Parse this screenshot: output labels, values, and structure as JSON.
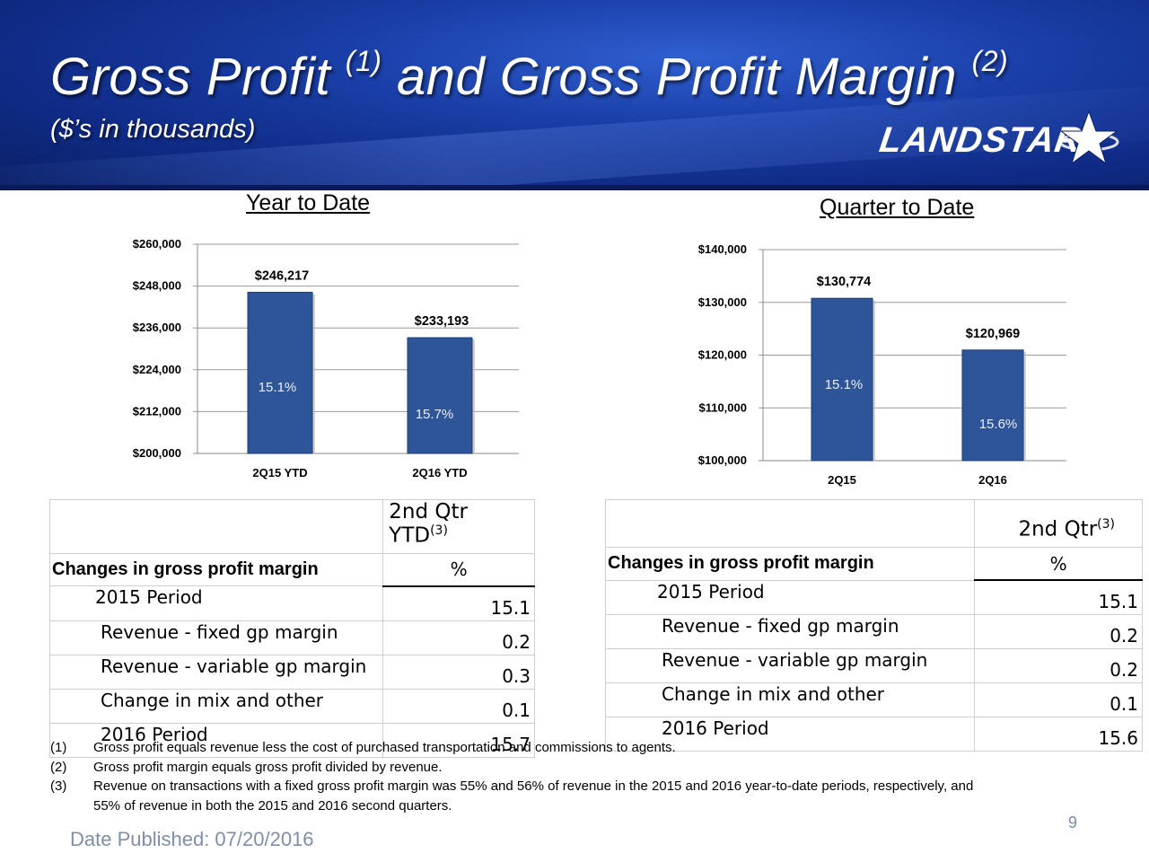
{
  "header": {
    "title_part1": "Gross Profit ",
    "title_sup1": "(1)",
    "title_part2": " and Gross Profit Margin ",
    "title_sup2": "(2)",
    "subtitle": "($’s in thousands)",
    "logo_text": "LANDSTAR"
  },
  "colors": {
    "bar": "#2e5597",
    "bar_edge": "#1e3c70",
    "header_bg": "#1a3fa8",
    "margin_label": "#e8eefc"
  },
  "chart_data": [
    {
      "type": "bar",
      "title": "Year to Date",
      "categories": [
        "2Q15 YTD",
        "2Q16 YTD"
      ],
      "values": [
        246217,
        233193
      ],
      "value_labels": [
        "$246,217",
        "$233,193"
      ],
      "margin_labels": [
        "15.1%",
        "15.7%"
      ],
      "ylim": [
        200000,
        260000
      ],
      "yticks": [
        200000,
        212000,
        224000,
        236000,
        248000,
        260000
      ],
      "ytick_labels": [
        "$200,000",
        "$212,000",
        "$224,000",
        "$236,000",
        "$248,000",
        "$260,000"
      ],
      "grid": true
    },
    {
      "type": "bar",
      "title": "Quarter to Date",
      "categories": [
        "2Q15",
        "2Q16"
      ],
      "values": [
        130774,
        120969
      ],
      "value_labels": [
        "$130,774",
        "$120,969"
      ],
      "margin_labels": [
        "15.1%",
        "15.6%"
      ],
      "ylim": [
        100000,
        140000
      ],
      "yticks": [
        100000,
        110000,
        120000,
        130000,
        140000
      ],
      "ytick_labels": [
        "$100,000",
        "$110,000",
        "$120,000",
        "$130,000",
        "$140,000"
      ],
      "grid": true
    }
  ],
  "ytd_table": {
    "col_header": "2nd Qtr YTD",
    "col_header_sup": "(3)",
    "row_header": "Changes in gross profit margin",
    "pct_header": "%",
    "rows": [
      {
        "label": "2015 Period",
        "value": "15.1"
      },
      {
        "label": "Revenue - fixed gp margin",
        "value": "0.2"
      },
      {
        "label": "Revenue - variable gp margin",
        "value": "0.3"
      },
      {
        "label": "Change in mix and other",
        "value": "0.1"
      },
      {
        "label": "2016 Period",
        "value": "15.7"
      }
    ]
  },
  "qtd_table": {
    "col_header": "2nd Qtr",
    "col_header_sup": "(3)",
    "row_header": "Changes in gross profit margin",
    "pct_header": "%",
    "rows": [
      {
        "label": "2015 Period",
        "value": "15.1"
      },
      {
        "label": "Revenue - fixed gp margin",
        "value": "0.2"
      },
      {
        "label": "Revenue - variable gp margin",
        "value": "0.2"
      },
      {
        "label": "Change in mix and other",
        "value": "0.1"
      },
      {
        "label": "2016 Period",
        "value": "15.6"
      }
    ]
  },
  "footnotes": [
    {
      "mark": "(1)",
      "text": "Gross profit equals revenue less the cost of purchased transportation and commissions to agents."
    },
    {
      "mark": "(2)",
      "text": "Gross profit margin equals gross profit divided by revenue."
    },
    {
      "mark": "(3)",
      "text": "Revenue on transactions with a fixed gross profit margin was 55% and 56% of revenue in the 2015 and 2016 year-to-date periods, respectively, and 55% of revenue in both the 2015 and 2016 second quarters."
    }
  ],
  "page_number": "9",
  "date_published": "Date Published:  07/20/2016"
}
